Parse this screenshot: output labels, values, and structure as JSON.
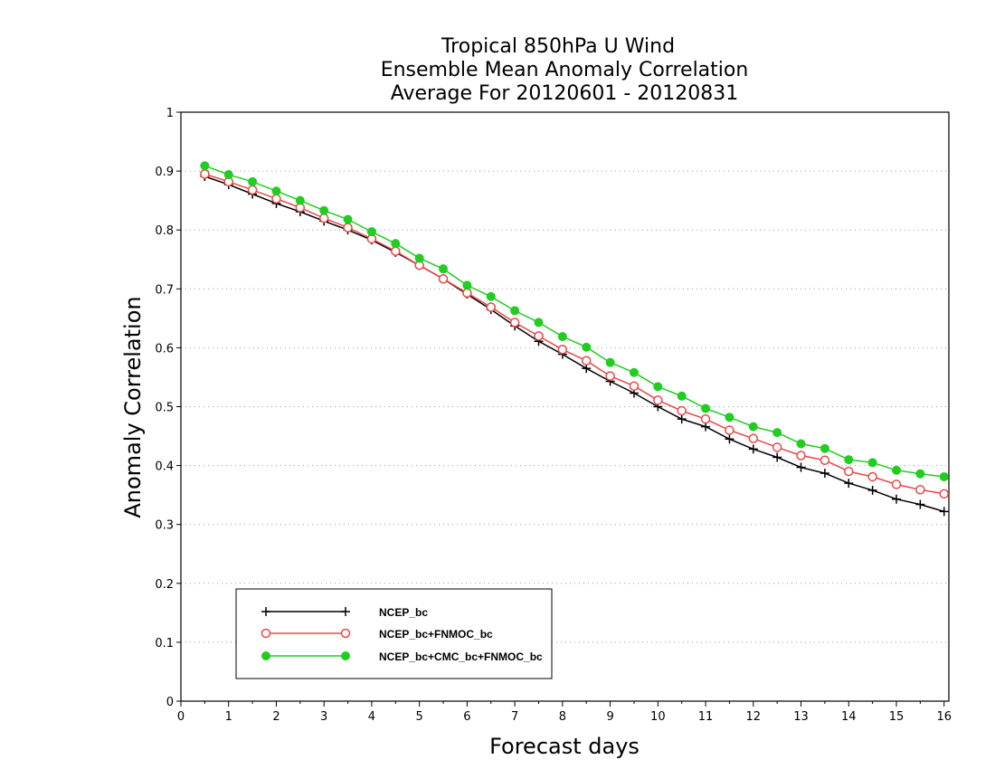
{
  "chart_data": {
    "type": "line",
    "title_lines": [
      "Tropical 850hPa U Wind",
      "Ensemble Mean Anomaly Correlation",
      "Average For 20120601 - 20120831"
    ],
    "xlabel": "Forecast days",
    "ylabel": "Anomaly Correlation",
    "xlim": [
      0,
      16.1
    ],
    "ylim": [
      0,
      1
    ],
    "xticks": [
      "0",
      "1",
      "2",
      "3",
      "4",
      "5",
      "6",
      "7",
      "8",
      "9",
      "10",
      "11",
      "12",
      "13",
      "14",
      "15",
      "16"
    ],
    "yticks": [
      "0",
      "0.1",
      "0.2",
      "0.3",
      "0.4",
      "0.5",
      "0.6",
      "0.7",
      "0.8",
      "0.9",
      "1"
    ],
    "grid": "horizontal dotted",
    "legend_position": "bottom-left",
    "x": [
      0.5,
      1,
      1.5,
      2,
      2.5,
      3,
      3.5,
      4,
      4.5,
      5,
      5.5,
      6,
      6.5,
      7,
      7.5,
      8,
      8.5,
      9,
      9.5,
      10,
      10.5,
      11,
      11.5,
      12,
      12.5,
      13,
      13.5,
      14,
      14.5,
      15,
      15.5,
      16
    ],
    "series": [
      {
        "name": "NCEP_bc",
        "color": "#000000",
        "marker": "plus",
        "values": [
          0.891,
          0.877,
          0.861,
          0.845,
          0.831,
          0.815,
          0.8,
          0.783,
          0.762,
          0.74,
          0.717,
          0.691,
          0.665,
          0.637,
          0.611,
          0.589,
          0.565,
          0.543,
          0.523,
          0.5,
          0.479,
          0.466,
          0.445,
          0.428,
          0.414,
          0.397,
          0.387,
          0.37,
          0.358,
          0.343,
          0.334,
          0.322
        ]
      },
      {
        "name": "NCEP_bc+FNMOC_bc",
        "color": "#e84848",
        "marker": "open-circle",
        "values": [
          0.895,
          0.882,
          0.868,
          0.853,
          0.838,
          0.82,
          0.804,
          0.785,
          0.764,
          0.74,
          0.717,
          0.693,
          0.669,
          0.643,
          0.62,
          0.597,
          0.578,
          0.552,
          0.535,
          0.511,
          0.493,
          0.479,
          0.46,
          0.446,
          0.431,
          0.417,
          0.409,
          0.39,
          0.381,
          0.368,
          0.359,
          0.352
        ]
      },
      {
        "name": "NCEP_bc+CMC_bc+FNMOC_bc",
        "color": "#22cc22",
        "marker": "filled-circle",
        "values": [
          0.909,
          0.894,
          0.882,
          0.866,
          0.85,
          0.833,
          0.818,
          0.797,
          0.777,
          0.752,
          0.734,
          0.706,
          0.687,
          0.663,
          0.643,
          0.619,
          0.601,
          0.575,
          0.558,
          0.534,
          0.518,
          0.497,
          0.482,
          0.466,
          0.456,
          0.437,
          0.429,
          0.41,
          0.405,
          0.392,
          0.386,
          0.381
        ]
      }
    ]
  }
}
